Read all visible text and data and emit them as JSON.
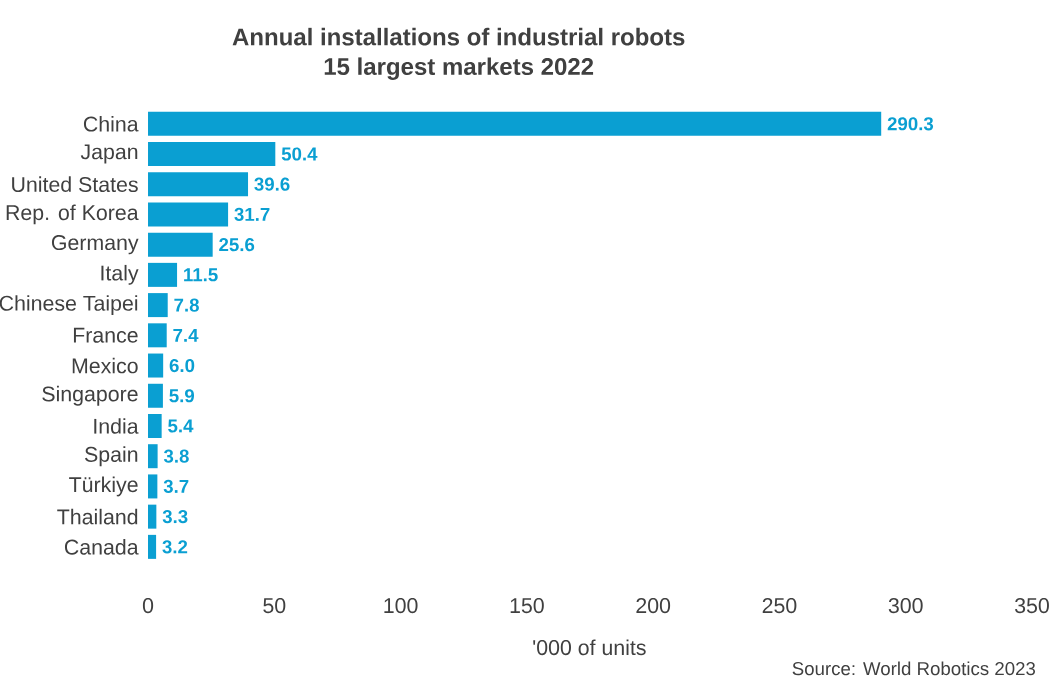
{
  "chart_data": {
    "type": "bar",
    "orientation": "horizontal",
    "title": "Annual installations of industrial robots",
    "subtitle": "15 largest markets 2022",
    "categories": [
      "China",
      "Japan",
      "United States",
      "Rep. of Korea",
      "Germany",
      "Italy",
      "Chinese Taipei",
      "France",
      "Mexico",
      "Singapore",
      "India",
      "Spain",
      "Türkiye",
      "Thailand",
      "Canada"
    ],
    "values": [
      290.3,
      50.4,
      39.6,
      31.7,
      25.6,
      11.5,
      7.8,
      7.4,
      6.0,
      5.9,
      5.4,
      3.8,
      3.7,
      3.3,
      3.2
    ],
    "color": "#0a9fd2",
    "value_labels": [
      "290.3",
      "50.4",
      "39.6",
      "31.7",
      "25.6",
      "11.5",
      "7.8",
      "7.4",
      "6.0",
      "5.9",
      "5.4",
      "3.8",
      "3.7",
      "3.3",
      "3.2"
    ],
    "xlim": [
      0,
      350
    ],
    "xticks": [
      0,
      50,
      100,
      150,
      200,
      250,
      300,
      350
    ],
    "xlabel": "'000 of units",
    "annotations": [
      "Source: World Robotics 2023"
    ]
  }
}
